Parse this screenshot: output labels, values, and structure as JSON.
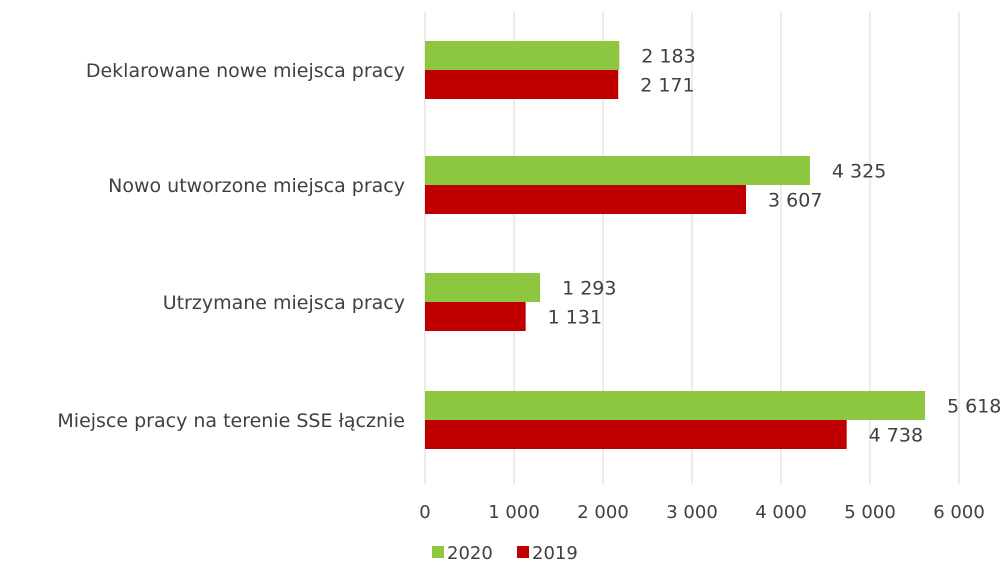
{
  "chart_data": {
    "type": "bar",
    "orientation": "horizontal",
    "categories": [
      "Deklarowane nowe miejsca pracy",
      "Nowo utworzone miejsca pracy",
      "Utrzymane miejsca pracy",
      "Miejsce pracy na terenie SSE łącznie"
    ],
    "series": [
      {
        "name": "2020",
        "color": "#8DC63F",
        "values": [
          2183,
          4325,
          1293,
          5618
        ],
        "labels": [
          "2 183",
          "4 325",
          "1 293",
          "5 618"
        ]
      },
      {
        "name": "2019",
        "color": "#C00000",
        "values": [
          2171,
          3607,
          1131,
          4738
        ],
        "labels": [
          "2 171",
          "3 607",
          "1 131",
          "4 738"
        ]
      }
    ],
    "xlim": [
      0,
      6000
    ],
    "xticks": [
      0,
      1000,
      2000,
      3000,
      4000,
      5000,
      6000
    ],
    "xtick_labels": [
      "0",
      "1 000",
      "2 000",
      "3 000",
      "4 000",
      "5 000",
      "6 000"
    ],
    "grid": "vertical",
    "legend_position": "bottom"
  }
}
